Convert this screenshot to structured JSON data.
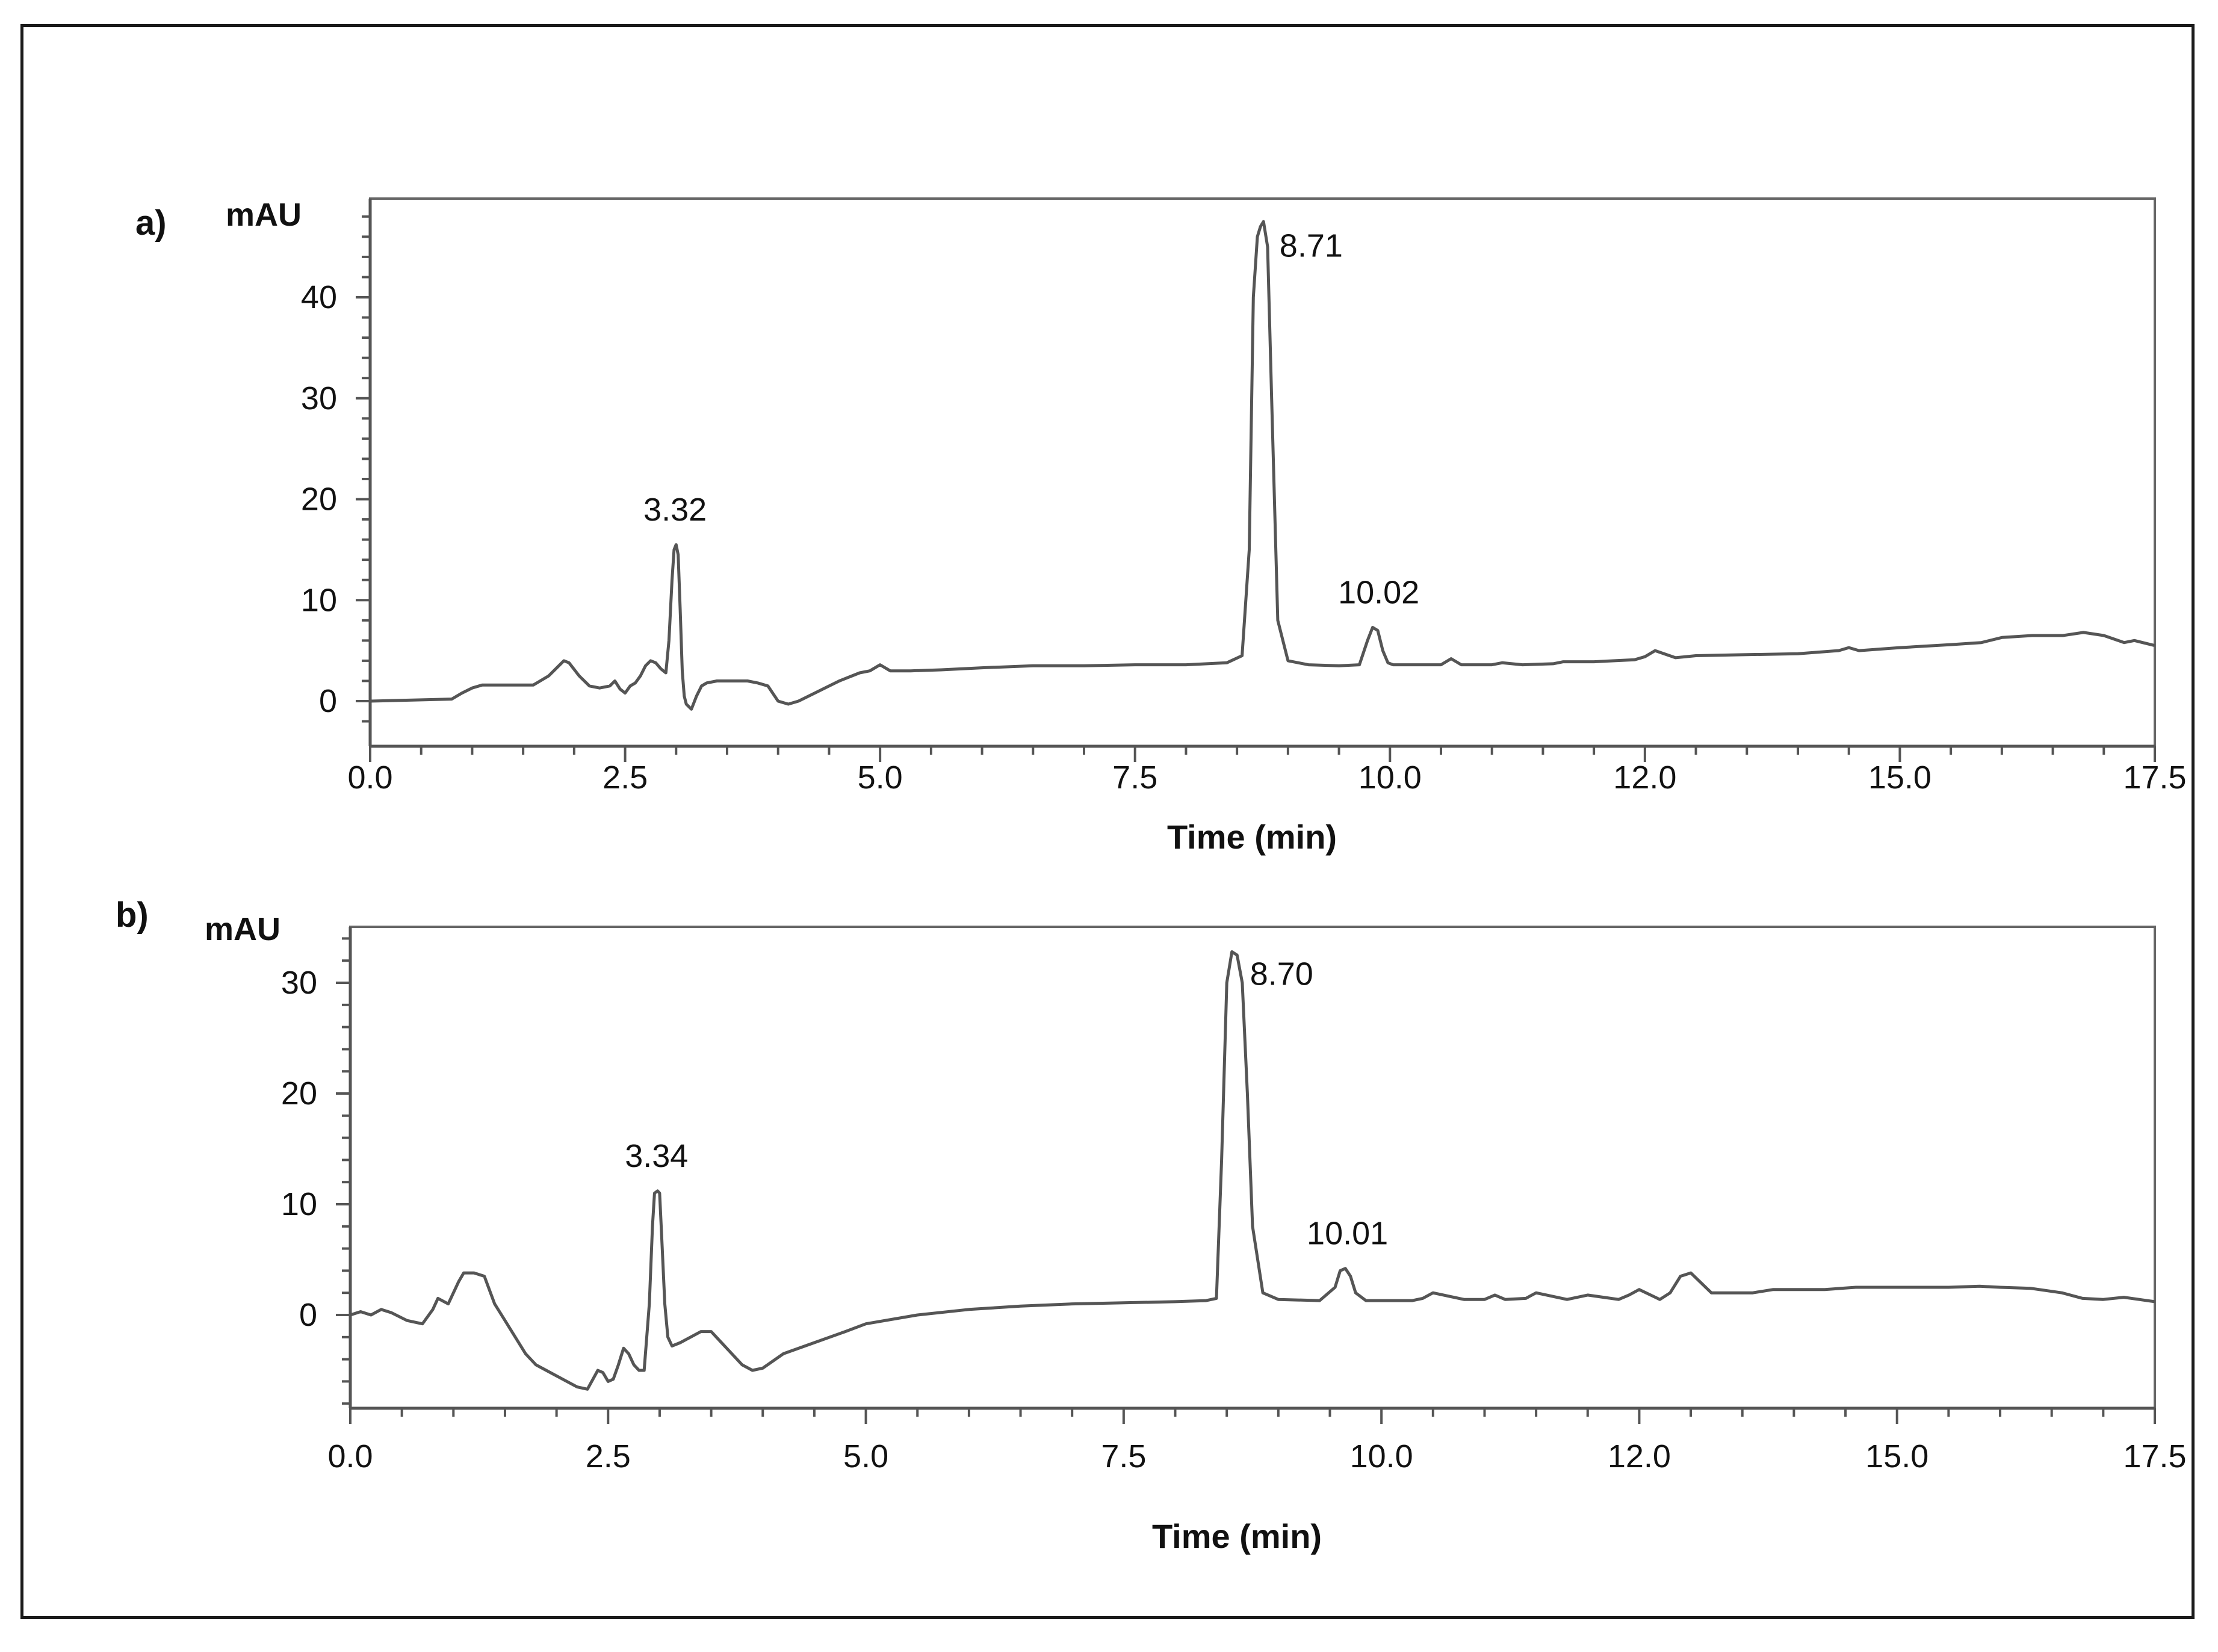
{
  "chart_data": [
    {
      "type": "line",
      "panel_label": "a)",
      "ylabel": "mAU",
      "xlabel": "Time (min)",
      "xlim": [
        0,
        17.5
      ],
      "ylim": [
        -3,
        50
      ],
      "x_ticks": [
        "0.0",
        "2.5",
        "5.0",
        "7.5",
        "10.0",
        "12.0",
        "15.0",
        "17.5"
      ],
      "y_ticks": [
        "0",
        "10",
        "20",
        "30",
        "40"
      ],
      "peaks": [
        {
          "label": "3.32",
          "x": 2.99,
          "y": 15.5
        },
        {
          "label": "8.71",
          "x": 8.74,
          "y": 47.3
        },
        {
          "label": "10.02",
          "x": 9.89,
          "y": 7.3
        }
      ],
      "series": [
        {
          "x": [
            0.0,
            0.8,
            0.9,
            1.0,
            1.1,
            1.3,
            1.6,
            1.75,
            1.85,
            1.9,
            1.95,
            2.05,
            2.15,
            2.25,
            2.35,
            2.4,
            2.45,
            2.5,
            2.55,
            2.6,
            2.65,
            2.7,
            2.75,
            2.8,
            2.85,
            2.9,
            2.93,
            2.96,
            2.98,
            3.0,
            3.02,
            3.04,
            3.06,
            3.08,
            3.1,
            3.15,
            3.2,
            3.25,
            3.3,
            3.4,
            3.5,
            3.6,
            3.7,
            3.8,
            3.9,
            4.0,
            4.1,
            4.2,
            4.4,
            4.6,
            4.8,
            4.9,
            5.0,
            5.1,
            5.3,
            5.6,
            6.0,
            6.5,
            7.0,
            7.5,
            8.0,
            8.4,
            8.55,
            8.62,
            8.66,
            8.7,
            8.73,
            8.76,
            8.8,
            8.84,
            8.9,
            9.0,
            9.2,
            9.5,
            9.7,
            9.78,
            9.83,
            9.88,
            9.93,
            9.98,
            10.03,
            10.1,
            10.3,
            10.5,
            10.6,
            10.7,
            11.0,
            11.1,
            11.3,
            11.6,
            11.7,
            12.0,
            12.4,
            12.5,
            12.6,
            12.8,
            13.0,
            13.5,
            14.0,
            14.4,
            14.5,
            14.6,
            15.0,
            15.5,
            15.8,
            16.0,
            16.3,
            16.6,
            16.8,
            17.0,
            17.2,
            17.3,
            17.5
          ],
          "y": [
            0.0,
            0.2,
            0.8,
            1.3,
            1.6,
            1.6,
            1.6,
            2.5,
            3.5,
            4.0,
            3.8,
            2.5,
            1.5,
            1.3,
            1.5,
            2.0,
            1.2,
            0.8,
            1.5,
            1.8,
            2.5,
            3.5,
            4.0,
            3.8,
            3.2,
            2.8,
            6.0,
            12.0,
            15.0,
            15.5,
            14.5,
            9.0,
            3.0,
            0.5,
            -0.3,
            -0.8,
            0.5,
            1.5,
            1.8,
            2.0,
            2.0,
            2.0,
            2.0,
            1.8,
            1.5,
            0.0,
            -0.3,
            0.0,
            1.0,
            2.0,
            2.8,
            3.0,
            3.6,
            3.0,
            3.0,
            3.1,
            3.3,
            3.5,
            3.5,
            3.6,
            3.6,
            3.8,
            4.5,
            15.0,
            40.0,
            46.0,
            47.0,
            47.5,
            45.0,
            30.0,
            8.0,
            4.0,
            3.6,
            3.5,
            3.6,
            6.0,
            7.3,
            7.0,
            5.0,
            3.8,
            3.6,
            3.6,
            3.6,
            3.6,
            4.2,
            3.6,
            3.6,
            3.8,
            3.6,
            3.7,
            3.9,
            3.9,
            4.1,
            4.4,
            5.0,
            4.3,
            4.5,
            4.6,
            4.7,
            5.0,
            5.3,
            5.0,
            5.3,
            5.6,
            5.8,
            6.3,
            6.5,
            6.5,
            6.8,
            6.5,
            5.8,
            6.0,
            5.5
          ]
        }
      ]
    },
    {
      "type": "line",
      "panel_label": "b)",
      "ylabel": "mAU",
      "xlabel": "Time (min)",
      "xlim": [
        0,
        17.5
      ],
      "ylim": [
        -8.5,
        35
      ],
      "x_ticks": [
        "0.0",
        "2.5",
        "5.0",
        "7.5",
        "10.0",
        "12.0",
        "15.0",
        "17.5"
      ],
      "y_ticks": [
        "0",
        "10",
        "20",
        "30"
      ],
      "peaks": [
        {
          "label": "3.34",
          "x": 2.97,
          "y": 11.2
        },
        {
          "label": "8.70",
          "x": 8.55,
          "y": 32.8
        },
        {
          "label": "10.01",
          "x": 9.67,
          "y": 4.2
        }
      ],
      "series": [
        {
          "x": [
            0.0,
            0.1,
            0.2,
            0.3,
            0.4,
            0.55,
            0.7,
            0.8,
            0.85,
            0.95,
            1.0,
            1.05,
            1.1,
            1.2,
            1.3,
            1.4,
            1.5,
            1.6,
            1.7,
            1.8,
            1.9,
            2.0,
            2.1,
            2.2,
            2.3,
            2.4,
            2.45,
            2.5,
            2.55,
            2.6,
            2.65,
            2.7,
            2.75,
            2.8,
            2.85,
            2.9,
            2.93,
            2.95,
            2.98,
            3.0,
            3.02,
            3.05,
            3.08,
            3.12,
            3.2,
            3.3,
            3.4,
            3.5,
            3.6,
            3.7,
            3.8,
            3.9,
            4.0,
            4.2,
            4.5,
            4.8,
            5.0,
            5.5,
            6.0,
            6.5,
            7.0,
            7.5,
            8.0,
            8.3,
            8.4,
            8.45,
            8.5,
            8.55,
            8.6,
            8.65,
            8.7,
            8.75,
            8.85,
            9.0,
            9.4,
            9.55,
            9.6,
            9.65,
            9.7,
            9.75,
            9.85,
            10.0,
            10.3,
            10.4,
            10.5,
            10.8,
            11.0,
            11.1,
            11.2,
            11.4,
            11.5,
            11.8,
            11.9,
            12.0,
            12.3,
            12.4,
            12.5,
            12.7,
            12.8,
            12.9,
            13.0,
            13.2,
            13.6,
            13.8,
            14.0,
            14.3,
            14.6,
            15.0,
            15.5,
            15.8,
            16.0,
            16.3,
            16.6,
            16.8,
            17.0,
            17.2,
            17.5
          ],
          "y": [
            0.0,
            0.3,
            0.0,
            0.5,
            0.2,
            -0.5,
            -0.8,
            0.5,
            1.5,
            1.0,
            2.0,
            3.0,
            3.8,
            3.8,
            3.5,
            1.0,
            -0.5,
            -2.0,
            -3.5,
            -4.5,
            -5.0,
            -5.5,
            -6.0,
            -6.5,
            -6.7,
            -5.0,
            -5.2,
            -6.0,
            -5.8,
            -4.5,
            -3.0,
            -3.5,
            -4.5,
            -5.0,
            -5.0,
            1.0,
            8.0,
            11.0,
            11.2,
            11.0,
            7.0,
            1.0,
            -2.0,
            -2.8,
            -2.5,
            -2.0,
            -1.5,
            -1.5,
            -2.5,
            -3.5,
            -4.5,
            -5.0,
            -4.8,
            -3.5,
            -2.5,
            -1.5,
            -0.8,
            0.0,
            0.5,
            0.8,
            1.0,
            1.1,
            1.2,
            1.3,
            1.5,
            14.0,
            30.0,
            32.8,
            32.5,
            30.0,
            20.0,
            8.0,
            2.0,
            1.4,
            1.3,
            2.5,
            4.0,
            4.2,
            3.5,
            2.0,
            1.3,
            1.3,
            1.3,
            1.5,
            2.0,
            1.4,
            1.4,
            1.8,
            1.4,
            1.5,
            2.0,
            1.4,
            1.6,
            1.8,
            1.4,
            1.8,
            2.3,
            1.4,
            2.0,
            3.5,
            3.8,
            2.0,
            2.0,
            2.3,
            2.3,
            2.3,
            2.5,
            2.5,
            2.5,
            2.6,
            2.5,
            2.4,
            2.0,
            1.5,
            1.4,
            1.6,
            1.2
          ]
        }
      ]
    }
  ]
}
